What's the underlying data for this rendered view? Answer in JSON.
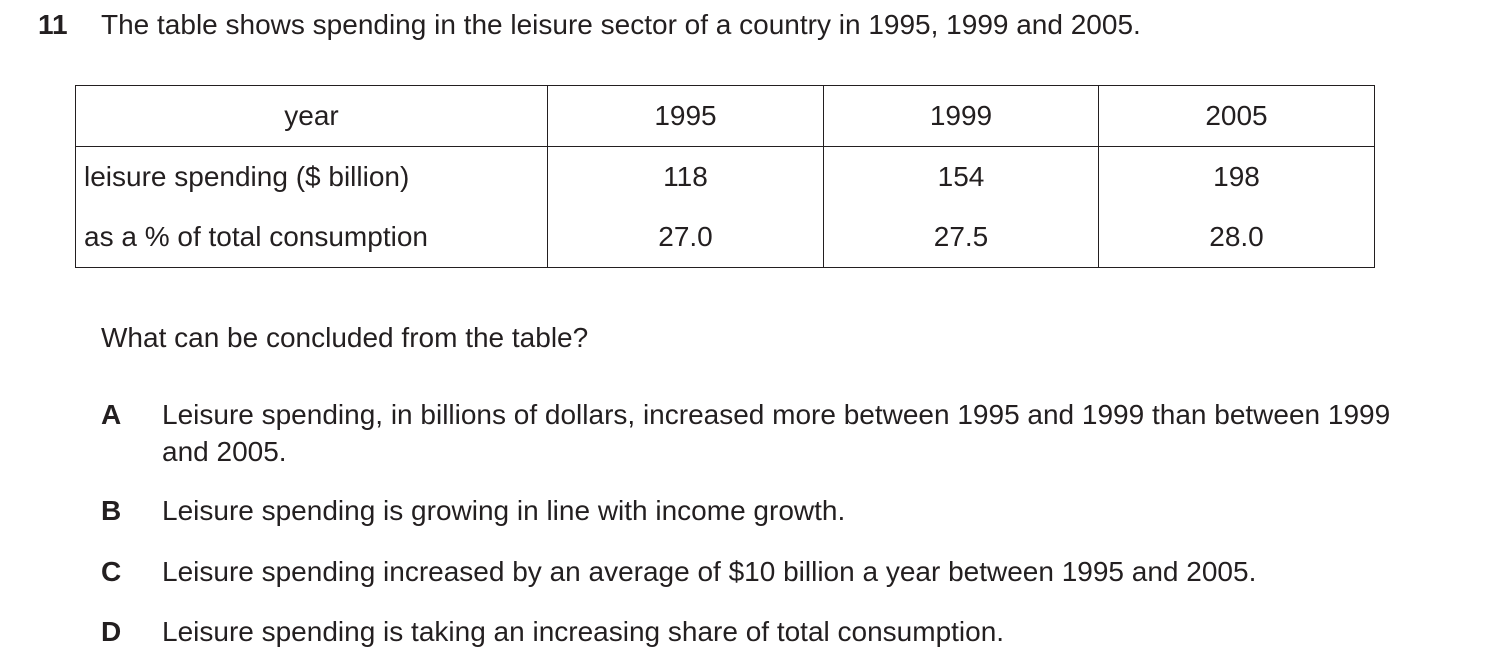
{
  "question": {
    "number": "11",
    "stem": "The table shows spending in the leisure sector of a country in 1995, 1999 and 2005."
  },
  "table": {
    "header": {
      "label": "year",
      "years": [
        "1995",
        "1999",
        "2005"
      ]
    },
    "rows": [
      {
        "label": "leisure spending ($ billion)",
        "values": [
          "118",
          "154",
          "198"
        ]
      },
      {
        "label": "as a % of total consumption",
        "values": [
          "27.0",
          "27.5",
          "28.0"
        ]
      }
    ]
  },
  "prompt": "What can be concluded from the table?",
  "options": [
    {
      "letter": "A",
      "text": "Leisure spending, in billions of dollars, increased more between 1995 and 1999 than between 1999 and 2005."
    },
    {
      "letter": "B",
      "text": "Leisure spending is growing in line with income growth."
    },
    {
      "letter": "C",
      "text": "Leisure spending increased by an average of $10 billion a year between 1995 and 2005."
    },
    {
      "letter": "D",
      "text": "Leisure spending is taking an increasing share of total consumption."
    }
  ]
}
